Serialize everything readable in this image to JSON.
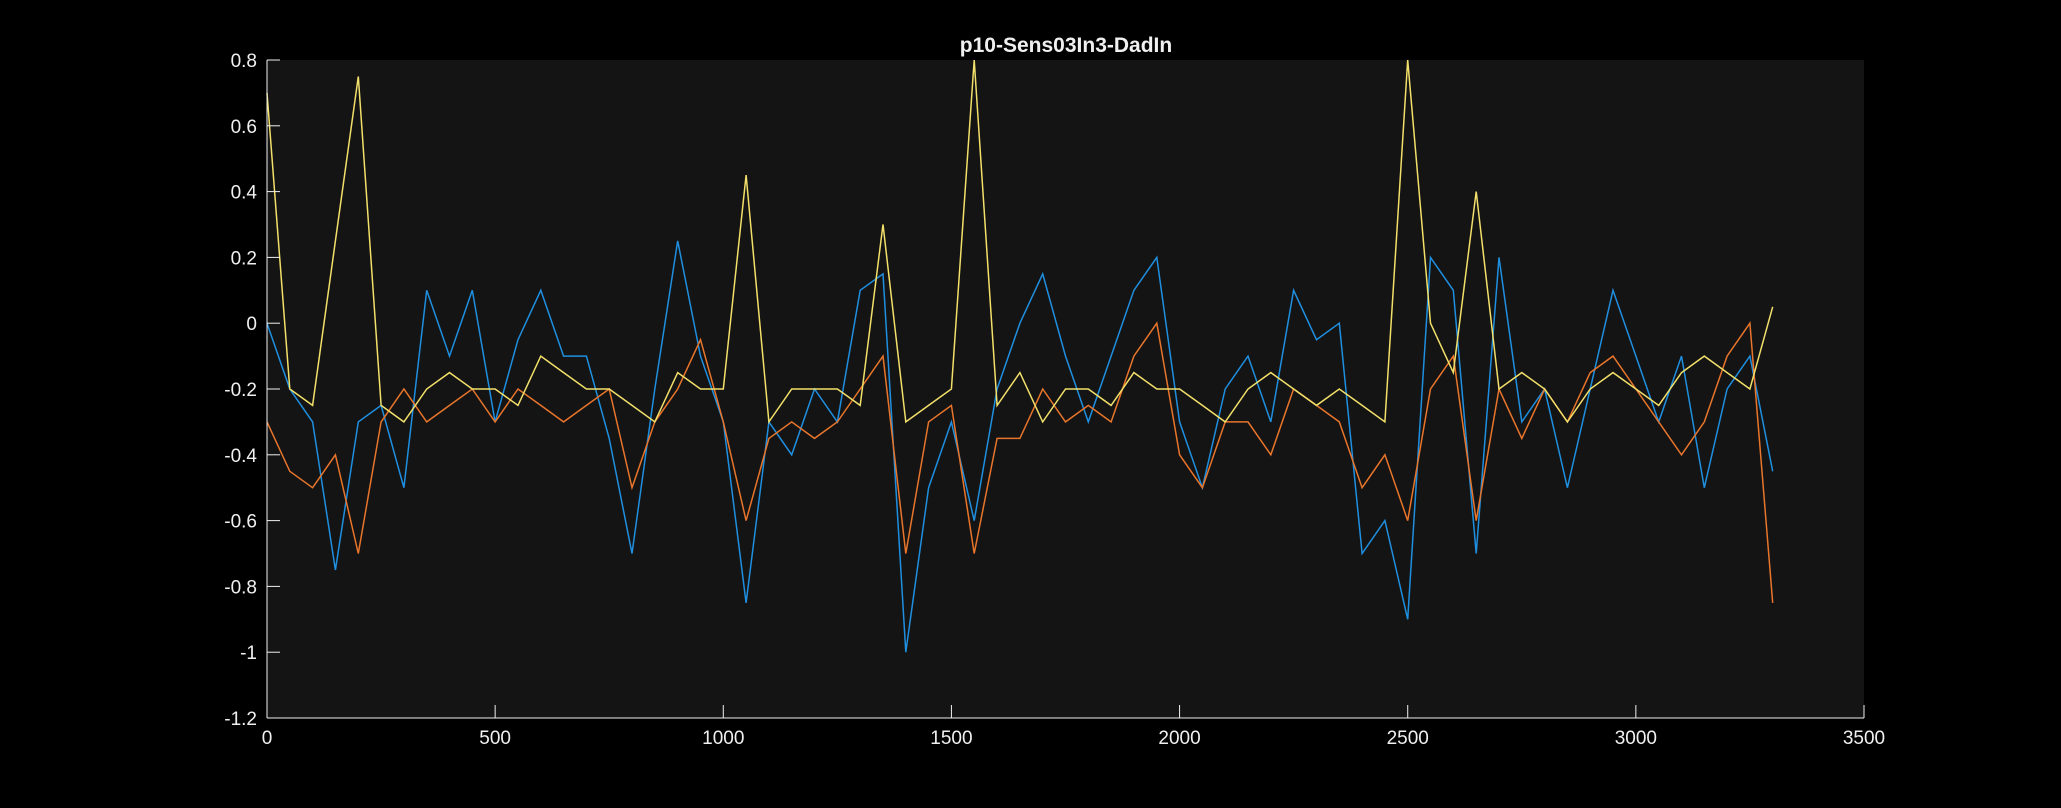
{
  "chart_data": {
    "type": "line",
    "title": "p10-Sens03In3-DadIn",
    "x": [
      0,
      50,
      100,
      150,
      200,
      250,
      300,
      350,
      400,
      450,
      500,
      550,
      600,
      650,
      700,
      750,
      800,
      850,
      900,
      950,
      1000,
      1050,
      1100,
      1150,
      1200,
      1250,
      1300,
      1350,
      1400,
      1450,
      1500,
      1550,
      1600,
      1650,
      1700,
      1750,
      1800,
      1850,
      1900,
      1950,
      2000,
      2050,
      2100,
      2150,
      2200,
      2250,
      2300,
      2350,
      2400,
      2450,
      2500,
      2550,
      2600,
      2650,
      2700,
      2750,
      2800,
      2850,
      2900,
      2950,
      3000,
      3050,
      3100,
      3150,
      3200,
      3250,
      3300
    ],
    "series": [
      {
        "color": "#1f8fe0",
        "values": [
          0.0,
          -0.2,
          -0.3,
          -0.75,
          -0.3,
          -0.25,
          -0.5,
          0.1,
          -0.1,
          0.1,
          -0.3,
          -0.05,
          0.1,
          -0.1,
          -0.1,
          -0.35,
          -0.7,
          -0.2,
          0.25,
          -0.1,
          -0.3,
          -0.85,
          -0.3,
          -0.4,
          -0.2,
          -0.3,
          0.1,
          0.15,
          -1.0,
          -0.5,
          -0.3,
          -0.6,
          -0.2,
          0.0,
          0.15,
          -0.1,
          -0.3,
          -0.1,
          0.1,
          0.2,
          -0.3,
          -0.5,
          -0.2,
          -0.1,
          -0.3,
          0.1,
          -0.05,
          0.0,
          -0.7,
          -0.6,
          -0.9,
          0.2,
          0.1,
          -0.7,
          0.2,
          -0.3,
          -0.2,
          -0.5,
          -0.2,
          0.1,
          -0.1,
          -0.3,
          -0.1,
          -0.5,
          -0.2,
          -0.1,
          -0.45
        ]
      },
      {
        "color": "#e8752b",
        "values": [
          -0.3,
          -0.45,
          -0.5,
          -0.4,
          -0.7,
          -0.3,
          -0.2,
          -0.3,
          -0.25,
          -0.2,
          -0.3,
          -0.2,
          -0.25,
          -0.3,
          -0.25,
          -0.2,
          -0.5,
          -0.3,
          -0.2,
          -0.05,
          -0.3,
          -0.6,
          -0.35,
          -0.3,
          -0.35,
          -0.3,
          -0.2,
          -0.1,
          -0.7,
          -0.3,
          -0.25,
          -0.7,
          -0.35,
          -0.35,
          -0.2,
          -0.3,
          -0.25,
          -0.3,
          -0.1,
          0.0,
          -0.4,
          -0.5,
          -0.3,
          -0.3,
          -0.4,
          -0.2,
          -0.25,
          -0.3,
          -0.5,
          -0.4,
          -0.6,
          -0.2,
          -0.1,
          -0.6,
          -0.2,
          -0.35,
          -0.2,
          -0.3,
          -0.15,
          -0.1,
          -0.2,
          -0.3,
          -0.4,
          -0.3,
          -0.1,
          0.0,
          -0.85
        ]
      },
      {
        "color": "#f2e06a",
        "values": [
          0.7,
          -0.2,
          -0.25,
          0.25,
          0.75,
          -0.25,
          -0.3,
          -0.2,
          -0.15,
          -0.2,
          -0.2,
          -0.25,
          -0.1,
          -0.15,
          -0.2,
          -0.2,
          -0.25,
          -0.3,
          -0.15,
          -0.2,
          -0.2,
          0.45,
          -0.3,
          -0.2,
          -0.2,
          -0.2,
          -0.25,
          0.3,
          -0.3,
          -0.25,
          -0.2,
          0.8,
          -0.25,
          -0.15,
          -0.3,
          -0.2,
          -0.2,
          -0.25,
          -0.15,
          -0.2,
          -0.2,
          -0.25,
          -0.3,
          -0.2,
          -0.15,
          -0.2,
          -0.25,
          -0.2,
          -0.25,
          -0.3,
          0.8,
          0.0,
          -0.15,
          0.4,
          -0.2,
          -0.15,
          -0.2,
          -0.3,
          -0.2,
          -0.15,
          -0.2,
          -0.25,
          -0.15,
          -0.1,
          -0.15,
          -0.2,
          0.05
        ]
      }
    ],
    "xlim": [
      0,
      3500
    ],
    "xticks": [
      0,
      500,
      1000,
      1500,
      2000,
      2500,
      3000,
      3500
    ],
    "ylim": [
      -1.2,
      0.8
    ],
    "yticks": [
      -1.2,
      -1,
      -0.8,
      -0.6,
      -0.4,
      -0.2,
      0,
      0.2,
      0.4,
      0.6,
      0.8
    ]
  }
}
